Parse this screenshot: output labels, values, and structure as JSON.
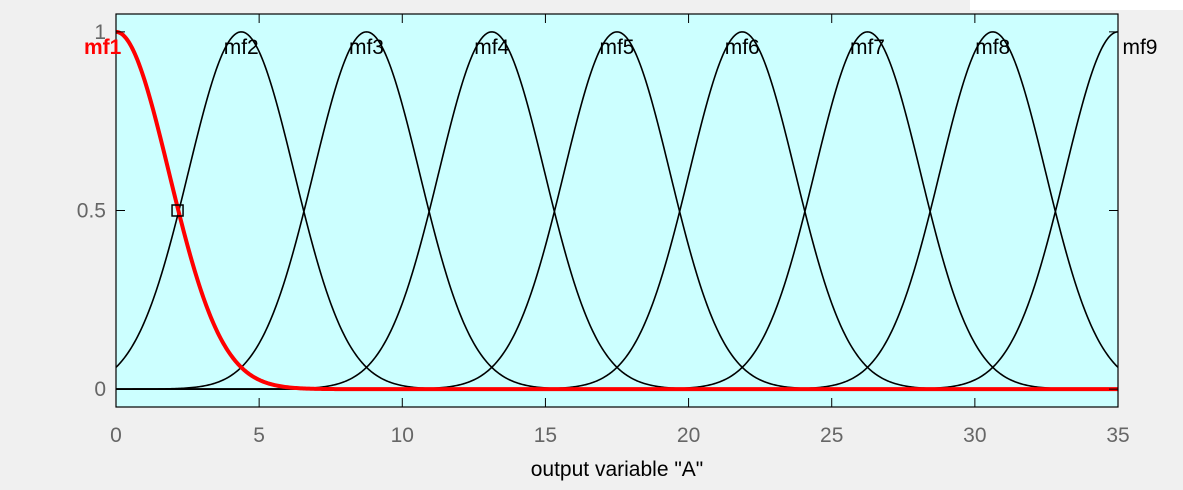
{
  "chart_data": {
    "type": "line",
    "xlabel": "output variable \"A\"",
    "ylabel": "",
    "title": "",
    "xlim": [
      0,
      35
    ],
    "ylim": [
      -0.05,
      1.05
    ],
    "x_ticks": [
      "0",
      "5",
      "10",
      "15",
      "20",
      "25",
      "30",
      "35"
    ],
    "y_ticks": [
      "0",
      "0.5",
      "1"
    ],
    "grid": false,
    "curve_shape": "gaussian",
    "sigma": 1.85,
    "selected_series": "mf1",
    "selected_point": {
      "x": 2.15,
      "y": 0.5
    },
    "colors": {
      "plot_background": "#ccffff",
      "selected": "#ff0000",
      "normal": "#000000",
      "figure_background": "#f0f0f0"
    },
    "series": [
      {
        "name": "mf1",
        "center": 0
      },
      {
        "name": "mf2",
        "center": 4.375
      },
      {
        "name": "mf3",
        "center": 8.75
      },
      {
        "name": "mf4",
        "center": 13.125
      },
      {
        "name": "mf5",
        "center": 17.5
      },
      {
        "name": "mf6",
        "center": 21.875
      },
      {
        "name": "mf7",
        "center": 26.25
      },
      {
        "name": "mf8",
        "center": 30.625
      },
      {
        "name": "mf9",
        "center": 35
      }
    ]
  }
}
